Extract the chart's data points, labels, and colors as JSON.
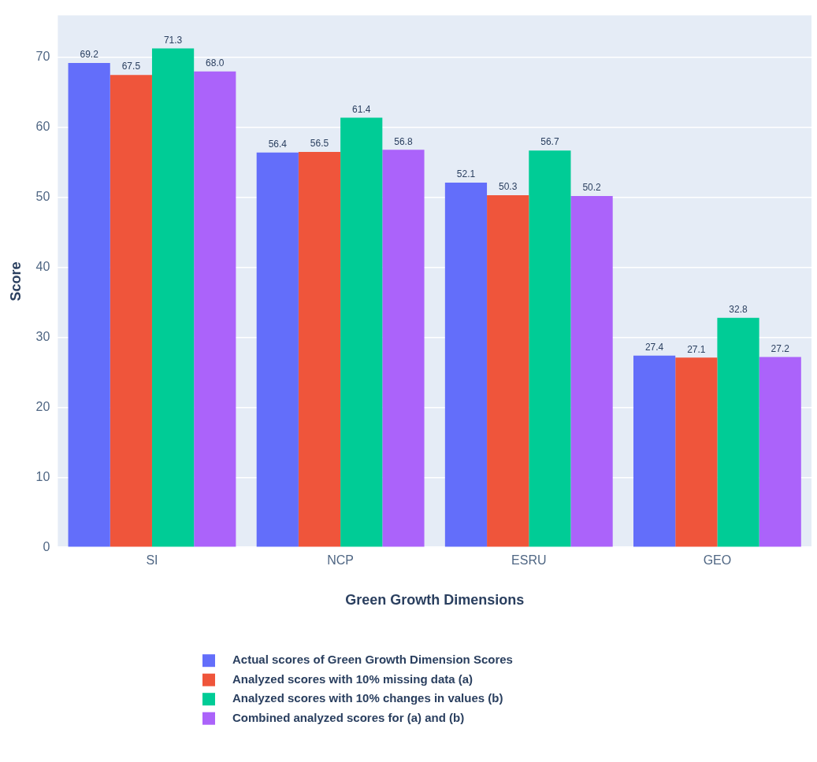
{
  "chart_data": {
    "type": "bar",
    "xlabel": "Green Growth Dimensions",
    "ylabel": "Score",
    "categories": [
      "SI",
      "NCP",
      "ESRU",
      "GEO"
    ],
    "series": [
      {
        "name": "Actual scores of Green Growth Dimension Scores",
        "color": "#636efa",
        "values": [
          69.2,
          56.4,
          52.1,
          27.4
        ],
        "value_labels": [
          "69.2",
          "56.4",
          "52.1",
          "27.4"
        ]
      },
      {
        "name": "Analyzed scores with 10% missing data (a)",
        "color": "#ef553b",
        "values": [
          67.5,
          56.5,
          50.3,
          27.1
        ],
        "value_labels": [
          "67.5",
          "56.5",
          "50.3",
          "27.1"
        ]
      },
      {
        "name": "Analyzed scores with 10% changes in values (b)",
        "color": "#00cc96",
        "values": [
          71.3,
          61.4,
          56.7,
          32.8
        ],
        "value_labels": [
          "71.3",
          "61.4",
          "56.7",
          "32.8"
        ]
      },
      {
        "name": "Combined analyzed scores for (a) and (b)",
        "color": "#ab63fa",
        "values": [
          68,
          56.8,
          50.2,
          27.2
        ],
        "value_labels": [
          "68.0",
          "56.8",
          "50.2",
          "27.2"
        ]
      }
    ],
    "ylim": [
      0,
      76
    ],
    "yticks": [
      0,
      10,
      20,
      30,
      40,
      50,
      60,
      70
    ],
    "grid": "y",
    "legend": "bottom"
  }
}
